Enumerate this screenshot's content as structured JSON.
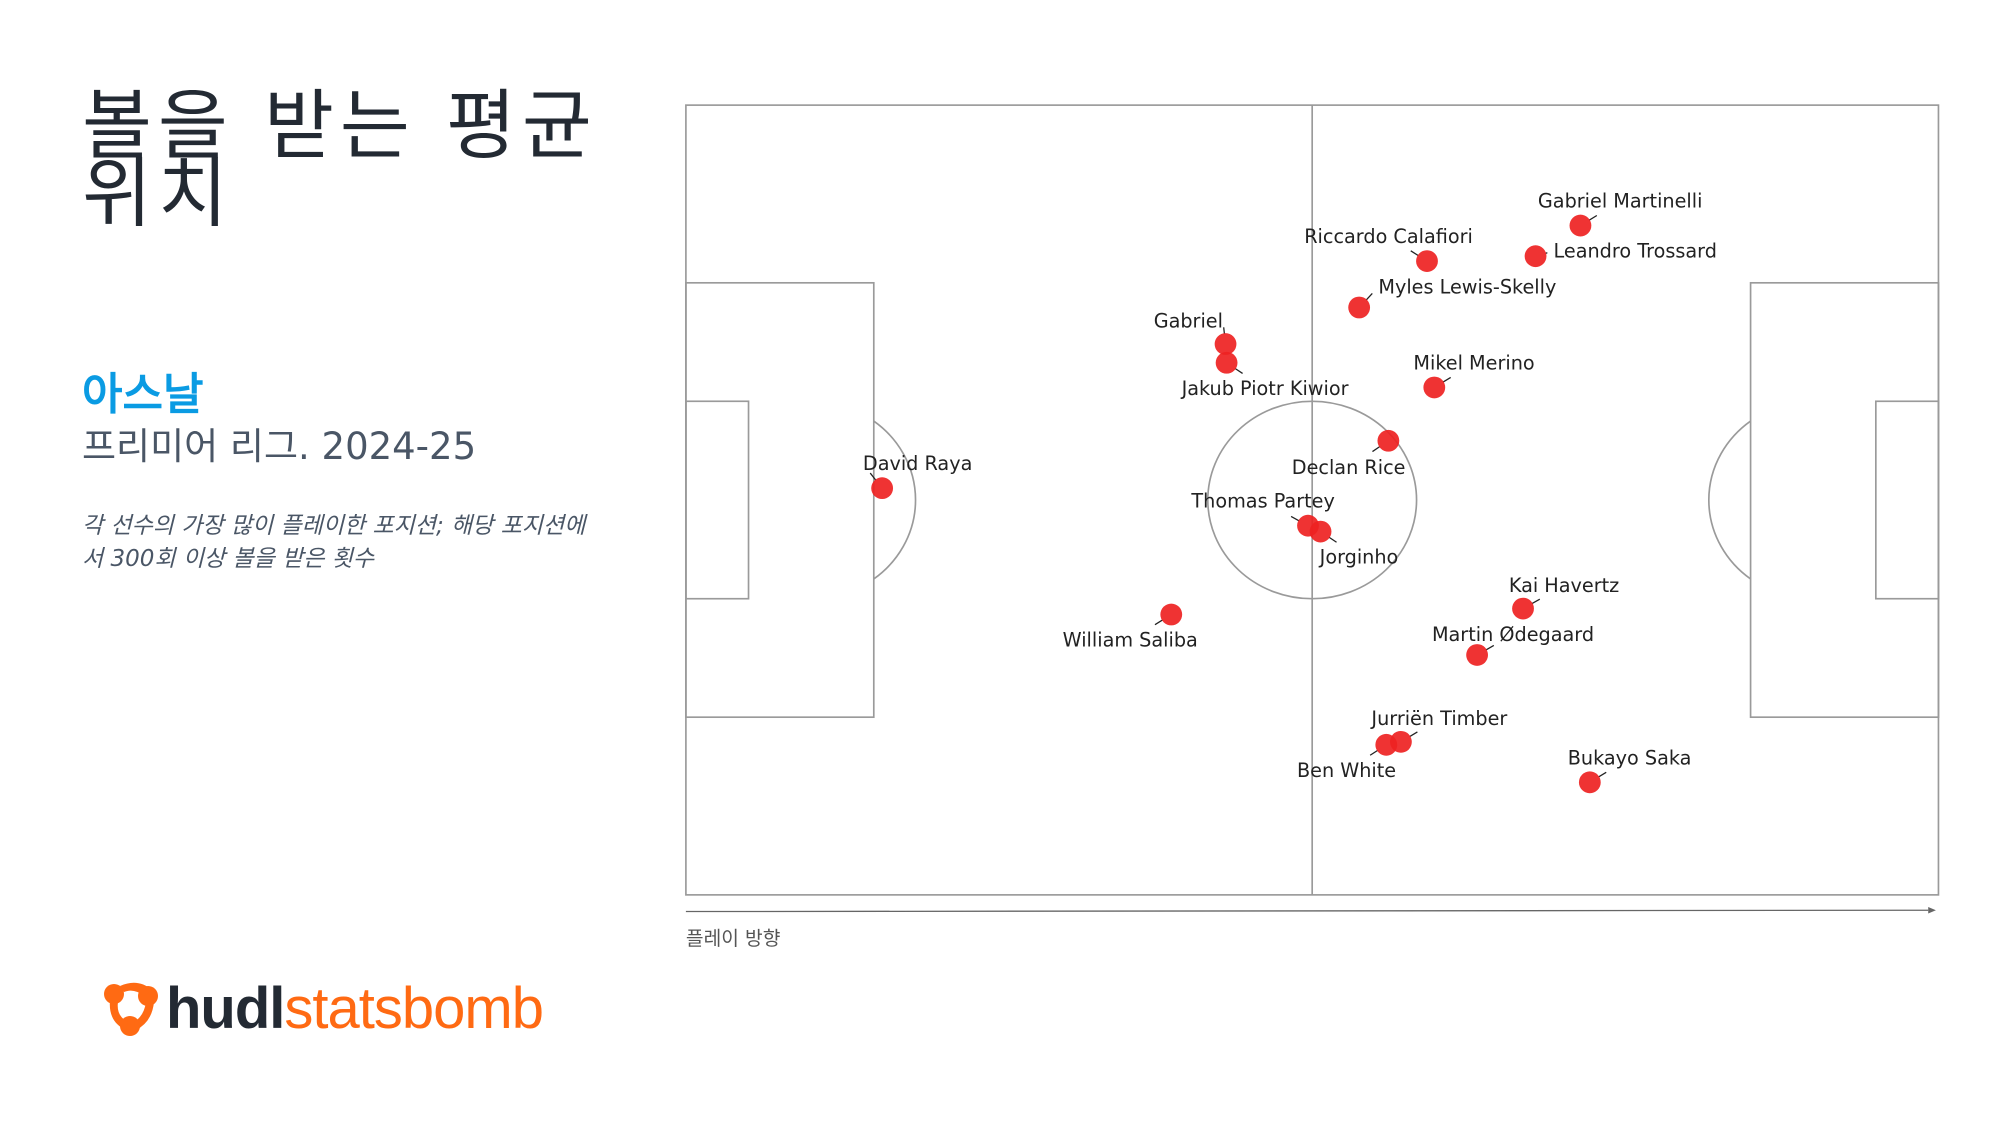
{
  "header": {
    "title": "볼을 받는 평균 위치",
    "team": "아스날",
    "competition": "프리미어 리그. 2024-25",
    "note": "각 선수의 가장 많이 플레이한 포지션; 해당 포지션에서 300회 이상 볼을 받은 횟수"
  },
  "logo": {
    "text_a": "hudl",
    "text_b": "statsbomb",
    "colors": {
      "hudl": "#232a33",
      "statsbomb": "#ff6a13"
    }
  },
  "direction_label": "플레이 방향",
  "colors": {
    "team": "#0a9be3",
    "marker": "#ee2222",
    "pitch_lines": "#9a9a9a"
  },
  "chart_data": {
    "type": "scatter",
    "title": "볼을 받는 평균 위치",
    "pitch": {
      "length": 120,
      "width": 80
    },
    "xlim": [
      0,
      120
    ],
    "ylim": [
      0,
      80
    ],
    "grid": false,
    "points": [
      {
        "name": "David Raya",
        "x": 18.8,
        "y": 38.8
      },
      {
        "name": "Gabriel",
        "x": 51.7,
        "y": 24.2
      },
      {
        "name": "Jakub Piotr Kiwior",
        "x": 51.8,
        "y": 26.1
      },
      {
        "name": "William Saliba",
        "x": 46.5,
        "y": 51.6
      },
      {
        "name": "Riccardo Calafiori",
        "x": 71.0,
        "y": 15.8
      },
      {
        "name": "Myles Lewis-Skelly",
        "x": 64.5,
        "y": 20.5
      },
      {
        "name": "Gabriel Martinelli",
        "x": 85.7,
        "y": 12.2
      },
      {
        "name": "Leandro Trossard",
        "x": 81.4,
        "y": 15.3
      },
      {
        "name": "Mikel Merino",
        "x": 71.7,
        "y": 28.6
      },
      {
        "name": "Declan Rice",
        "x": 67.3,
        "y": 34.0
      },
      {
        "name": "Thomas Partey",
        "x": 59.6,
        "y": 42.6
      },
      {
        "name": "Jorginho",
        "x": 60.8,
        "y": 43.2
      },
      {
        "name": "Kai Havertz",
        "x": 80.2,
        "y": 51.0
      },
      {
        "name": "Martin Ødegaard",
        "x": 75.8,
        "y": 55.7
      },
      {
        "name": "Jurriën Timber",
        "x": 68.5,
        "y": 64.5
      },
      {
        "name": "Ben White",
        "x": 67.1,
        "y": 64.8
      },
      {
        "name": "Bukayo Saka",
        "x": 86.6,
        "y": 68.6
      }
    ]
  }
}
